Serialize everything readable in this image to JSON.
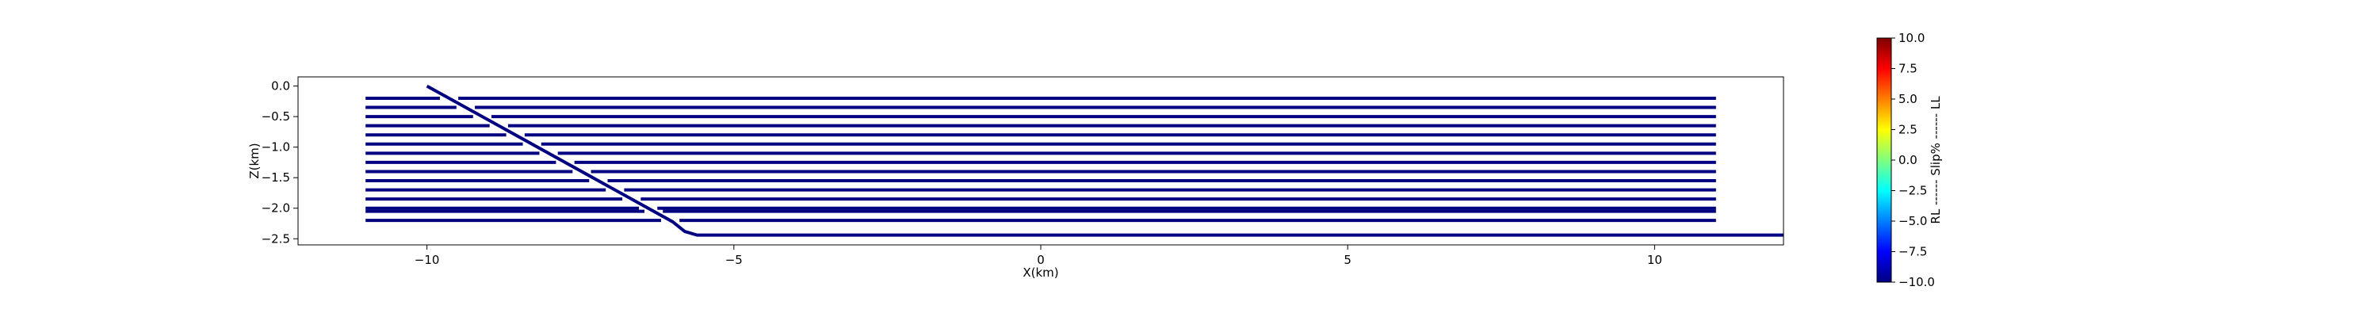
{
  "chart_data": {
    "type": "line",
    "xlabel": "X(km)",
    "ylabel": "Z(km)",
    "xlim": [
      -12.1,
      12.1
    ],
    "ylim": [
      -2.6,
      0.15
    ],
    "x_ticks": [
      -10,
      -5,
      0,
      5,
      10
    ],
    "x_tick_labels": [
      "−10",
      "−5",
      "0",
      "5",
      "10"
    ],
    "y_ticks": [
      0.0,
      -0.5,
      -1.0,
      -1.5,
      -2.0,
      -2.5
    ],
    "y_tick_labels": [
      "0.0",
      "−0.5",
      "−1.0",
      "−1.5",
      "−2.0",
      "−2.5"
    ],
    "grid": false,
    "line_color": "#000080",
    "fault": {
      "trace": [
        [
          -10.0,
          0.0
        ],
        [
          -6.0,
          -2.22
        ],
        [
          -5.8,
          -2.38
        ],
        [
          -5.6,
          -2.44
        ],
        [
          12.1,
          -2.44
        ]
      ]
    },
    "layers": {
      "x_min": -11.0,
      "x_max": 11.0,
      "gap_km": 0.3,
      "depths": [
        -0.2,
        -0.35,
        -0.5,
        -0.65,
        -0.8,
        -0.95,
        -1.1,
        -1.25,
        -1.4,
        -1.55,
        -1.7,
        -1.85,
        -2.0,
        -2.05,
        -2.2
      ]
    },
    "colorbar": {
      "label": "RL ------ Slip% ------ LL",
      "min": -10.0,
      "max": 10.0,
      "ticks": [
        10.0,
        7.5,
        5.0,
        2.5,
        0.0,
        -2.5,
        -5.0,
        -7.5,
        -10.0
      ],
      "tick_labels": [
        "10.0",
        "7.5",
        "5.0",
        "2.5",
        "0.0",
        "−2.5",
        "−5.0",
        "−7.5",
        "−10.0"
      ],
      "colormap": "jet",
      "colors": [
        "#00007f",
        "#0000ff",
        "#007fff",
        "#00ffff",
        "#7fff7f",
        "#ffff00",
        "#ff7f00",
        "#ff0000",
        "#7f0000"
      ]
    }
  }
}
